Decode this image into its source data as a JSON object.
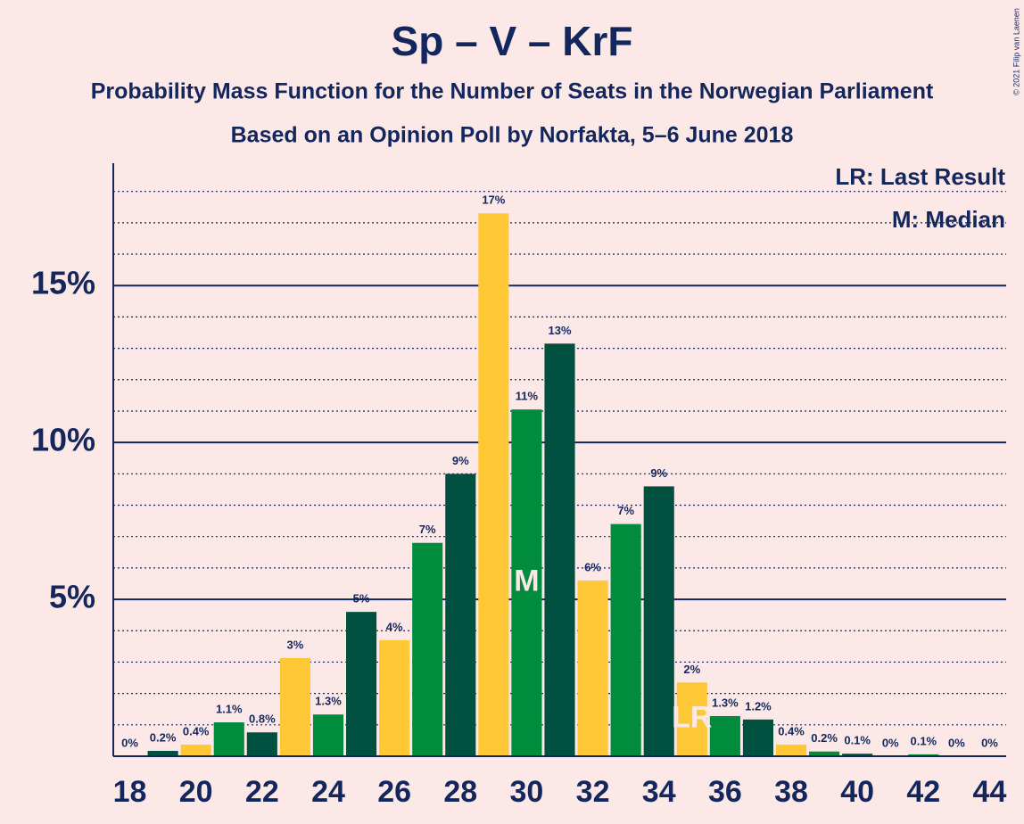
{
  "chart_data": {
    "type": "bar",
    "title": "Sp – V – KrF",
    "subtitle": "Probability Mass Function for the Number of Seats in the Norwegian Parliament",
    "subtitle2": "Based on an Opinion Poll by Norfakta, 5–6 June 2018",
    "copyright": "© 2021 Filip van Laenen",
    "x": [
      18,
      19,
      20,
      21,
      22,
      23,
      24,
      25,
      26,
      27,
      28,
      29,
      30,
      31,
      32,
      33,
      34,
      35,
      36,
      37,
      38,
      39,
      40,
      41,
      42,
      43,
      44
    ],
    "values": [
      0,
      0.17,
      0.37,
      1.08,
      0.76,
      3.13,
      1.33,
      4.6,
      3.7,
      6.8,
      9.0,
      17.3,
      11.05,
      13.15,
      5.6,
      7.4,
      8.6,
      2.35,
      1.28,
      1.17,
      0.37,
      0.15,
      0.08,
      0,
      0.06,
      0,
      0
    ],
    "value_labels": [
      "0%",
      "0.2%",
      "0.4%",
      "1.1%",
      "0.8%",
      "3%",
      "1.3%",
      "5%",
      "4%",
      "7%",
      "9%",
      "17%",
      "11%",
      "13%",
      "6%",
      "7%",
      "9%",
      "2%",
      "1.3%",
      "1.2%",
      "0.4%",
      "0.2%",
      "0.1%",
      "0%",
      "0.1%",
      "0%",
      "0%"
    ],
    "colors": [
      "#008c3c",
      "#00503f",
      "#ffc836",
      "#008c3c",
      "#00503f",
      "#ffc836",
      "#008c3c",
      "#00503f",
      "#ffc836",
      "#008c3c",
      "#00503f",
      "#ffc836",
      "#008c3c",
      "#00503f",
      "#ffc836",
      "#008c3c",
      "#00503f",
      "#ffc836",
      "#008c3c",
      "#00503f",
      "#ffc836",
      "#008c3c",
      "#00503f",
      "#ffc836",
      "#008c3c",
      "#00503f",
      "#ffc836"
    ],
    "xlim": [
      17.5,
      44.5
    ],
    "xticks": [
      18,
      20,
      22,
      24,
      26,
      28,
      30,
      32,
      34,
      36,
      38,
      40,
      42,
      44
    ],
    "ylim": [
      0,
      18.9
    ],
    "yticks": [
      {
        "value": 5,
        "label": "5%"
      },
      {
        "value": 10,
        "label": "10%"
      },
      {
        "value": 15,
        "label": "15%"
      }
    ],
    "minor_yticks": [
      1,
      2,
      3,
      4,
      6,
      7,
      8,
      9,
      11,
      12,
      13,
      14,
      16,
      17,
      18
    ],
    "median": 30,
    "median_label": "M",
    "last_result": 35,
    "last_result_label": "LR",
    "legend": [
      "LR: Last Result",
      "M: Median"
    ]
  }
}
